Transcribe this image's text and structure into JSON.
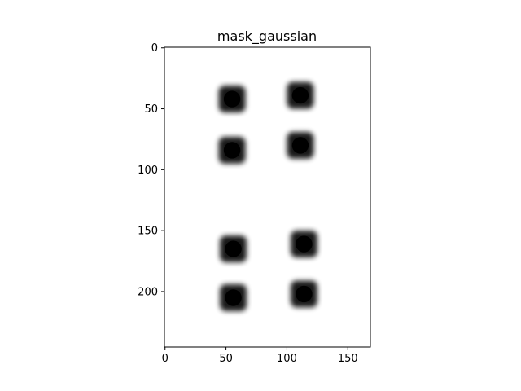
{
  "chart_data": {
    "type": "heatmap",
    "title": "mask_gaussian",
    "xlabel": "",
    "ylabel": "",
    "colormap": "gray",
    "background_color": "#ffffff",
    "blob_color": "#000000",
    "image_width": 169,
    "image_height": 246,
    "xlim": [
      -0.5,
      168.5
    ],
    "ylim": [
      245.5,
      -0.5
    ],
    "y_axis_inverted": true,
    "x_ticks": [
      0,
      50,
      100,
      150
    ],
    "y_ticks": [
      0,
      50,
      100,
      150,
      200
    ],
    "x_tick_labels": [
      "0",
      "50",
      "100",
      "150"
    ],
    "y_tick_labels": [
      "0",
      "50",
      "100",
      "150",
      "200"
    ],
    "grid": false,
    "legend": "none",
    "blobs": [
      {
        "x": 55,
        "y": 42
      },
      {
        "x": 111,
        "y": 39
      },
      {
        "x": 55,
        "y": 84
      },
      {
        "x": 111,
        "y": 80
      },
      {
        "x": 56,
        "y": 165
      },
      {
        "x": 114,
        "y": 161
      },
      {
        "x": 56,
        "y": 205
      },
      {
        "x": 114,
        "y": 202
      }
    ],
    "blob_radius": 11
  }
}
